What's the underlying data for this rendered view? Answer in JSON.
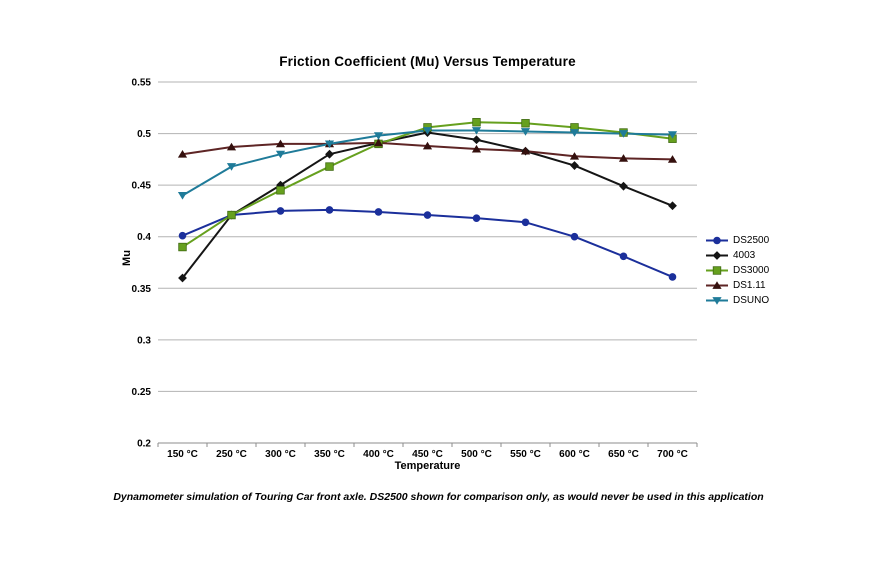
{
  "title": "Friction Coefficient (Mu) Versus Temperature",
  "caption": "Dynamometer simulation of Touring Car front axle. DS2500 shown for comparison only, as would never be used in this application",
  "colors": {
    "background": "#ffffff",
    "gridline": "#b3b3b3",
    "axis": "#8c8c8c",
    "text": "#000000"
  },
  "chart_data": {
    "type": "line",
    "title": "Friction Coefficient (Mu) Versus Temperature",
    "xlabel": "Temperature",
    "ylabel": "Mu",
    "ylim": [
      0.2,
      0.55
    ],
    "grid": true,
    "legend_position": "right",
    "y_ticks": [
      {
        "value": 0.55,
        "label": "0.55"
      },
      {
        "value": 0.5,
        "label": "0.5"
      },
      {
        "value": 0.45,
        "label": "0.45"
      },
      {
        "value": 0.4,
        "label": "0.4"
      },
      {
        "value": 0.35,
        "label": "0.35"
      },
      {
        "value": 0.3,
        "label": "0.3"
      },
      {
        "value": 0.25,
        "label": "0.25"
      },
      {
        "value": 0.2,
        "label": "0.2"
      }
    ],
    "categories": [
      "150 °C",
      "250 °C",
      "300 °C",
      "350 °C",
      "400 °C",
      "450 °C",
      "500 °C",
      "550 °C",
      "600 °C",
      "650 °C",
      "700 °C"
    ],
    "series": [
      {
        "name": "DS2500",
        "color": "#1b2f9b",
        "marker": "circle",
        "values": [
          0.401,
          0.421,
          0.425,
          0.426,
          0.424,
          0.421,
          0.418,
          0.414,
          0.4,
          0.381,
          0.361
        ]
      },
      {
        "name": "4003",
        "color": "#151515",
        "marker": "diamond",
        "values": [
          0.36,
          0.421,
          0.45,
          0.48,
          0.491,
          0.501,
          0.494,
          0.483,
          0.469,
          0.449,
          0.43
        ]
      },
      {
        "name": "DS3000",
        "color": "#66a01e",
        "marker": "square",
        "values": [
          0.39,
          0.421,
          0.445,
          0.468,
          0.49,
          0.506,
          0.511,
          0.51,
          0.506,
          0.501,
          0.495
        ]
      },
      {
        "name": "DS1.11",
        "color": "#5e2525",
        "marker": "triangle-up",
        "marker_color": "#35100e",
        "values": [
          0.48,
          0.487,
          0.49,
          0.49,
          0.491,
          0.488,
          0.485,
          0.483,
          0.478,
          0.476,
          0.475
        ]
      },
      {
        "name": "DSUNO",
        "color": "#1f7b99",
        "marker": "triangle-down",
        "values": [
          0.44,
          0.468,
          0.48,
          0.49,
          0.498,
          0.503,
          0.503,
          0.502,
          0.501,
          0.5,
          0.499
        ]
      }
    ]
  }
}
